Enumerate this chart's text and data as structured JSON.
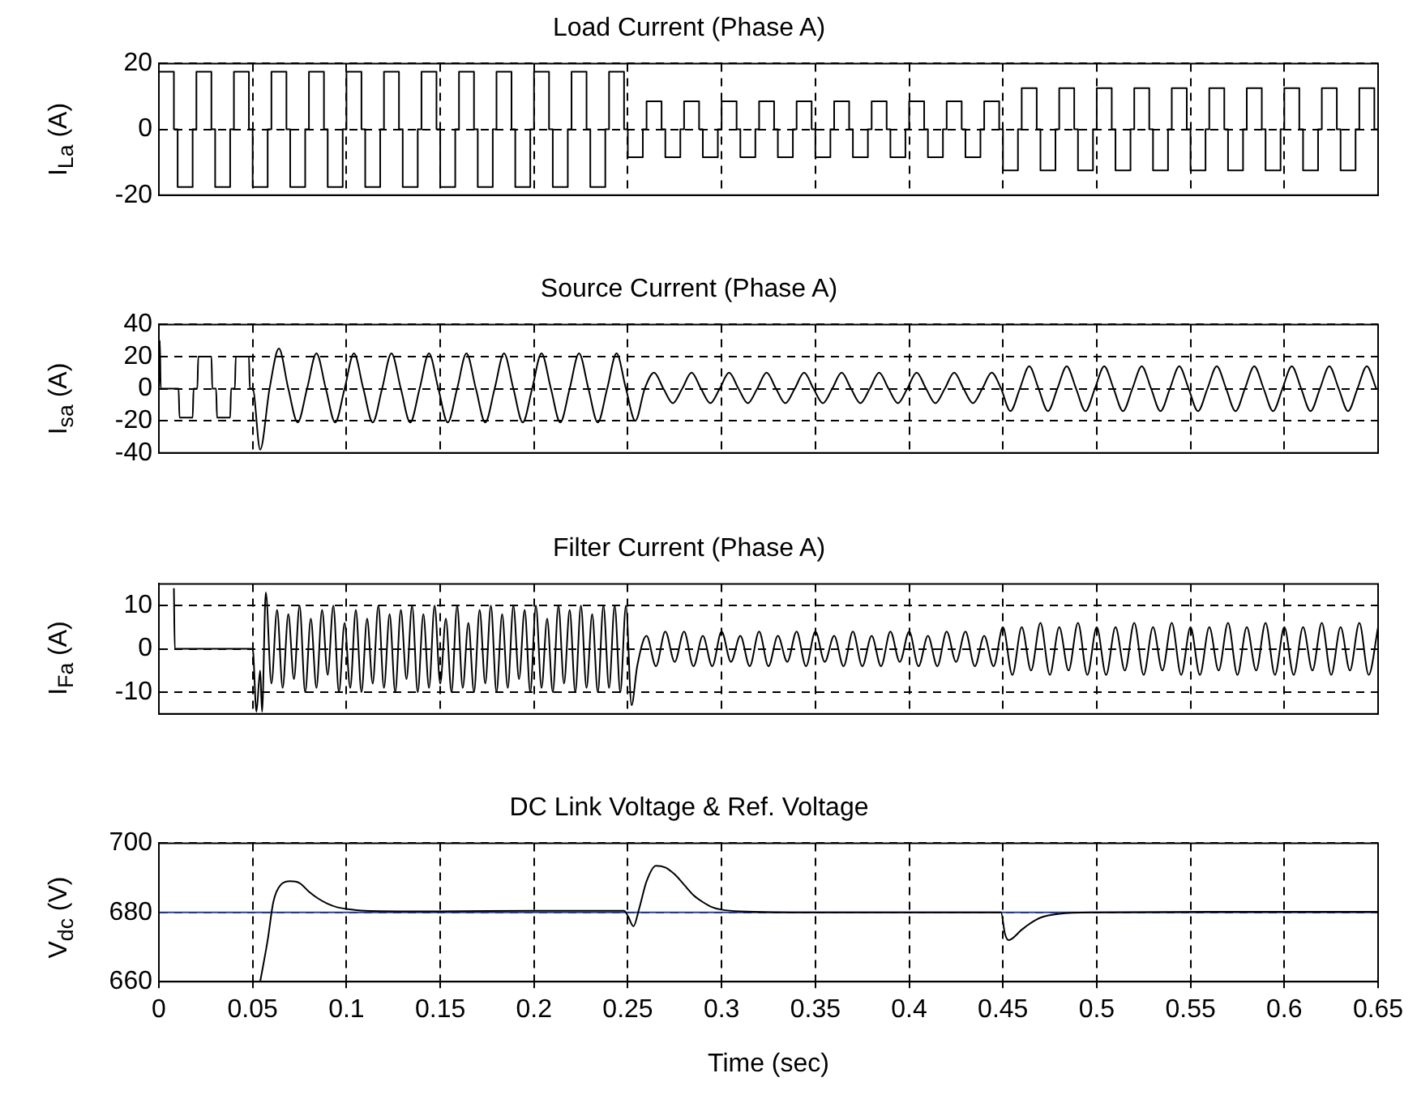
{
  "chart_data": [
    {
      "type": "step",
      "title": "Load Current (Phase A)",
      "ylabel": "I$_{La}$ (A)",
      "xlim": [
        0,
        0.65
      ],
      "xticks": [
        0,
        0.05,
        0.1,
        0.15,
        0.2,
        0.25,
        0.3,
        0.35,
        0.4,
        0.45,
        0.5,
        0.55,
        0.6,
        0.65
      ],
      "ylim": [
        -20,
        20
      ],
      "yticks": [
        -20,
        0,
        20
      ],
      "grid": true,
      "tick_labels": "y",
      "series": [
        {
          "color": "#000000",
          "x": [
            0,
            0.008,
            0.01,
            0.018,
            0.02,
            0.028,
            0.03,
            0.038,
            0.04,
            0.048,
            0.05,
            0.058,
            0.06,
            0.068,
            0.07,
            0.078,
            0.08,
            0.088,
            0.09,
            0.098,
            0.1,
            0.108,
            0.11,
            0.118,
            0.12,
            0.128,
            0.13,
            0.138,
            0.14,
            0.148,
            0.15,
            0.158,
            0.16,
            0.168,
            0.17,
            0.178,
            0.18,
            0.188,
            0.19,
            0.198,
            0.2,
            0.208,
            0.21,
            0.218,
            0.22,
            0.228,
            0.23,
            0.238,
            0.24,
            0.248,
            0.25,
            0.258,
            0.26,
            0.268,
            0.27,
            0.278,
            0.28,
            0.288,
            0.29,
            0.298,
            0.3,
            0.308,
            0.31,
            0.318,
            0.32,
            0.328,
            0.33,
            0.338,
            0.34,
            0.348,
            0.35,
            0.358,
            0.36,
            0.368,
            0.37,
            0.378,
            0.38,
            0.388,
            0.39,
            0.398,
            0.4,
            0.408,
            0.41,
            0.418,
            0.42,
            0.428,
            0.43,
            0.438,
            0.44,
            0.448,
            0.45,
            0.458,
            0.46,
            0.468,
            0.47,
            0.478,
            0.48,
            0.488,
            0.49,
            0.498,
            0.5,
            0.508,
            0.51,
            0.518,
            0.52,
            0.528,
            0.53,
            0.538,
            0.54,
            0.548,
            0.55,
            0.558,
            0.56,
            0.568,
            0.57,
            0.578,
            0.58,
            0.588,
            0.59,
            0.598,
            0.6,
            0.608,
            0.61,
            0.618,
            0.62,
            0.628,
            0.63,
            0.638,
            0.64,
            0.648,
            0.65
          ],
          "values": [
            17.5,
            0,
            -17.5,
            0,
            17.5,
            0,
            -17.5,
            0,
            17.5,
            0,
            -17.5,
            0,
            17.5,
            0,
            -17.5,
            0,
            17.5,
            0,
            -17.5,
            0,
            17.5,
            0,
            -17.5,
            0,
            17.5,
            0,
            -17.5,
            0,
            17.5,
            0,
            -17.5,
            0,
            17.5,
            0,
            -17.5,
            0,
            17.5,
            0,
            -17.5,
            0,
            17.5,
            0,
            -17.5,
            0,
            17.5,
            0,
            -17.5,
            0,
            17.5,
            0,
            -8.5,
            0,
            8.5,
            0,
            -8.5,
            0,
            8.5,
            0,
            -8.5,
            0,
            8.5,
            0,
            -8.5,
            0,
            8.5,
            0,
            -8.5,
            0,
            8.5,
            0,
            -8.5,
            0,
            8.5,
            0,
            -8.5,
            0,
            8.5,
            0,
            -8.5,
            0,
            8.5,
            0,
            -8.5,
            0,
            8.5,
            0,
            -8.5,
            0,
            8.5,
            0,
            -12.5,
            0,
            12.5,
            0,
            -12.5,
            0,
            12.5,
            0,
            -12.5,
            0,
            12.5,
            0,
            -12.5,
            0,
            12.5,
            0,
            -12.5,
            0,
            12.5,
            0,
            -12.5,
            0,
            12.5,
            0,
            -12.5,
            0,
            12.5,
            0,
            -12.5,
            0,
            12.5,
            0,
            -12.5,
            0,
            12.5,
            0,
            -12.5,
            0,
            12.5,
            0,
            0
          ]
        }
      ]
    },
    {
      "type": "line",
      "title": "Source Current (Phase A)",
      "ylabel": "I$_{sa}$ (A)",
      "xlim": [
        0,
        0.65
      ],
      "xticks": [
        0,
        0.05,
        0.1,
        0.15,
        0.2,
        0.25,
        0.3,
        0.35,
        0.4,
        0.45,
        0.5,
        0.55,
        0.6,
        0.65
      ],
      "ylim": [
        -40,
        40
      ],
      "yticks": [
        -40,
        -20,
        0,
        20,
        40
      ],
      "grid": true,
      "tick_labels": "y",
      "series": [
        {
          "color": "#000000",
          "x": [
            0,
            0.0005,
            0.001,
            0.0105,
            0.011,
            0.018,
            0.0185,
            0.0205,
            0.021,
            0.028,
            0.0285,
            0.0305,
            0.031,
            0.038,
            0.0385,
            0.0405,
            0.041,
            0.048,
            0.0485,
            0.05,
            0.054,
            0.059,
            0.064,
            0.069,
            0.074,
            0.079,
            0.084,
            0.089,
            0.094,
            0.099,
            0.104,
            0.109,
            0.114,
            0.119,
            0.124,
            0.129,
            0.134,
            0.139,
            0.144,
            0.149,
            0.154,
            0.159,
            0.164,
            0.169,
            0.174,
            0.179,
            0.184,
            0.189,
            0.194,
            0.199,
            0.204,
            0.209,
            0.214,
            0.219,
            0.224,
            0.229,
            0.234,
            0.239,
            0.244,
            0.249,
            0.254,
            0.259,
            0.264,
            0.269,
            0.274,
            0.279,
            0.284,
            0.289,
            0.294,
            0.299,
            0.304,
            0.309,
            0.314,
            0.319,
            0.324,
            0.329,
            0.334,
            0.339,
            0.344,
            0.349,
            0.354,
            0.359,
            0.364,
            0.369,
            0.374,
            0.379,
            0.384,
            0.389,
            0.394,
            0.399,
            0.404,
            0.409,
            0.414,
            0.419,
            0.424,
            0.429,
            0.434,
            0.439,
            0.444,
            0.449,
            0.454,
            0.459,
            0.464,
            0.469,
            0.474,
            0.479,
            0.484,
            0.489,
            0.494,
            0.499,
            0.504,
            0.509,
            0.514,
            0.519,
            0.524,
            0.529,
            0.534,
            0.539,
            0.544,
            0.549,
            0.554,
            0.559,
            0.564,
            0.569,
            0.574,
            0.579,
            0.584,
            0.589,
            0.594,
            0.599,
            0.604,
            0.609,
            0.614,
            0.619,
            0.624,
            0.629,
            0.634,
            0.639,
            0.644,
            0.649
          ],
          "values": [
            0,
            30,
            0,
            0,
            -18,
            -18,
            0,
            0,
            20,
            20,
            0,
            0,
            -18,
            -18,
            0,
            0,
            20,
            20,
            0,
            0,
            -38,
            0,
            25,
            0,
            -21,
            0,
            22,
            0,
            -21,
            0,
            22,
            0,
            -21,
            0,
            22,
            0,
            -21,
            0,
            22,
            0,
            -21,
            0,
            22,
            0,
            -21,
            0,
            22,
            0,
            -21,
            0,
            22,
            0,
            -21,
            0,
            22,
            0,
            -21,
            0,
            22,
            0,
            -20,
            0,
            10,
            0,
            -9,
            0,
            10,
            0,
            -9,
            0,
            10,
            0,
            -9,
            0,
            10,
            0,
            -9,
            0,
            10,
            0,
            -9,
            0,
            10,
            0,
            -9,
            0,
            10,
            0,
            -9,
            0,
            10,
            0,
            -9,
            0,
            10,
            0,
            -9,
            0,
            10,
            0,
            -14,
            0,
            14,
            0,
            -14,
            0,
            14,
            0,
            -14,
            0,
            14,
            0,
            -14,
            0,
            14,
            0,
            -14,
            0,
            14,
            0,
            -14,
            0,
            14,
            0,
            -14,
            0,
            14,
            0,
            -14,
            0,
            14,
            0,
            -14,
            0,
            14,
            0,
            -14,
            0,
            14,
            0
          ]
        }
      ]
    },
    {
      "type": "line",
      "title": "Filter Current (Phase A)",
      "ylabel": "I$_{Fa}$ (A)",
      "xlim": [
        0,
        0.65
      ],
      "xticks": [
        0,
        0.05,
        0.1,
        0.15,
        0.2,
        0.25,
        0.3,
        0.35,
        0.4,
        0.45,
        0.5,
        0.55,
        0.6,
        0.65
      ],
      "ylim": [
        -15,
        15
      ],
      "yticks": [
        -10,
        0,
        10
      ],
      "grid": true,
      "tick_labels": "y",
      "series": [
        {
          "color": "#000000",
          "x": [
            0.008,
            0.0085,
            0.05,
            0.052,
            0.054,
            0.055,
            0.057,
            0.06,
            0.063,
            0.066,
            0.069,
            0.072,
            0.075,
            0.078,
            0.081,
            0.084,
            0.087,
            0.09,
            0.093,
            0.096,
            0.099,
            0.102,
            0.105,
            0.108,
            0.111,
            0.114,
            0.117,
            0.12,
            0.123,
            0.126,
            0.129,
            0.132,
            0.135,
            0.138,
            0.141,
            0.144,
            0.147,
            0.15,
            0.153,
            0.156,
            0.159,
            0.162,
            0.165,
            0.168,
            0.171,
            0.174,
            0.177,
            0.18,
            0.183,
            0.186,
            0.189,
            0.192,
            0.195,
            0.198,
            0.201,
            0.204,
            0.207,
            0.21,
            0.213,
            0.216,
            0.219,
            0.222,
            0.225,
            0.228,
            0.231,
            0.234,
            0.237,
            0.24,
            0.243,
            0.246,
            0.249,
            0.252,
            0.255,
            0.26,
            0.265,
            0.27,
            0.275,
            0.28,
            0.285,
            0.29,
            0.295,
            0.3,
            0.305,
            0.31,
            0.315,
            0.32,
            0.325,
            0.33,
            0.335,
            0.34,
            0.345,
            0.35,
            0.355,
            0.36,
            0.365,
            0.37,
            0.375,
            0.38,
            0.385,
            0.39,
            0.395,
            0.4,
            0.405,
            0.41,
            0.415,
            0.42,
            0.425,
            0.43,
            0.435,
            0.44,
            0.445,
            0.45,
            0.455,
            0.46,
            0.465,
            0.47,
            0.475,
            0.48,
            0.485,
            0.49,
            0.495,
            0.5,
            0.505,
            0.51,
            0.515,
            0.52,
            0.525,
            0.53,
            0.535,
            0.54,
            0.545,
            0.55,
            0.555,
            0.56,
            0.565,
            0.57,
            0.575,
            0.58,
            0.585,
            0.59,
            0.595,
            0.6,
            0.605,
            0.61,
            0.615,
            0.62,
            0.625,
            0.63,
            0.635,
            0.64,
            0.645,
            0.65
          ],
          "values": [
            14,
            0,
            0,
            -14.5,
            -5,
            -14.5,
            13,
            -8,
            9,
            -9,
            8,
            -7,
            10,
            -10,
            7,
            -9,
            9,
            -6,
            10,
            -10,
            6,
            -9,
            9,
            -10,
            7,
            -8,
            10,
            -9,
            8,
            -10,
            9,
            -7,
            10,
            -10,
            8,
            -9,
            10,
            -8,
            7,
            -10,
            10,
            -9,
            6,
            -10,
            9,
            -8,
            10,
            -10,
            8,
            -9,
            10,
            -7,
            9,
            -10,
            10,
            -9,
            7,
            -10,
            10,
            -8,
            9,
            -10,
            10,
            -9,
            8,
            -10,
            10,
            -9,
            10,
            -10,
            10,
            -13,
            -4,
            3,
            -4,
            4,
            -3,
            4,
            -4,
            3,
            -4,
            4,
            -3,
            3,
            -4,
            4,
            -4,
            3,
            -3,
            4,
            -4,
            4,
            -3,
            3,
            -4,
            4,
            -4,
            3,
            -4,
            4,
            -3,
            4,
            -4,
            3,
            -4,
            4,
            -3,
            4,
            -4,
            3,
            -4,
            5,
            -6,
            5,
            -5,
            6,
            -6,
            5,
            -5,
            6,
            -6,
            5,
            -6,
            5,
            -5,
            6,
            -6,
            5,
            -5,
            6,
            -6,
            5,
            -6,
            5,
            -5,
            6,
            -6,
            5,
            -5,
            6,
            -6,
            5,
            -6,
            5,
            -5,
            6,
            -6,
            5,
            -5,
            6,
            -6,
            5
          ]
        }
      ]
    },
    {
      "type": "line",
      "title": "DC Link Voltage & Ref. Voltage",
      "xlabel": "Time (sec)",
      "ylabel": "V$_{dc}$ (V)",
      "xlim": [
        0,
        0.65
      ],
      "xticks": [
        0,
        0.05,
        0.1,
        0.15,
        0.2,
        0.25,
        0.3,
        0.35,
        0.4,
        0.45,
        0.5,
        0.55,
        0.6,
        0.65
      ],
      "ylim": [
        660,
        700
      ],
      "yticks": [
        660,
        680,
        700
      ],
      "grid": true,
      "series": [
        {
          "color": "#000000",
          "x": [
            0.054,
            0.058,
            0.061,
            0.065,
            0.07,
            0.075,
            0.08,
            0.085,
            0.09,
            0.095,
            0.1,
            0.11,
            0.15,
            0.2,
            0.248,
            0.25,
            0.253,
            0.256,
            0.26,
            0.265,
            0.27,
            0.275,
            0.28,
            0.285,
            0.29,
            0.295,
            0.3,
            0.31,
            0.35,
            0.4,
            0.449,
            0.451,
            0.453,
            0.46,
            0.465,
            0.47,
            0.48,
            0.5,
            0.6,
            0.65
          ],
          "values": [
            660,
            672,
            683,
            688,
            689,
            688.5,
            686,
            684,
            682.5,
            681.5,
            681,
            680.5,
            680.3,
            680.5,
            680.5,
            679,
            676,
            681,
            689,
            693.5,
            693,
            691,
            688,
            685,
            683,
            681.5,
            680.8,
            680.3,
            680,
            680,
            680,
            674,
            672,
            675,
            677,
            678.5,
            679.6,
            680,
            680.2,
            680.2
          ]
        },
        {
          "color": "#2a3fa8",
          "x": [
            0,
            0.65
          ],
          "values": [
            680,
            680
          ]
        }
      ]
    }
  ]
}
